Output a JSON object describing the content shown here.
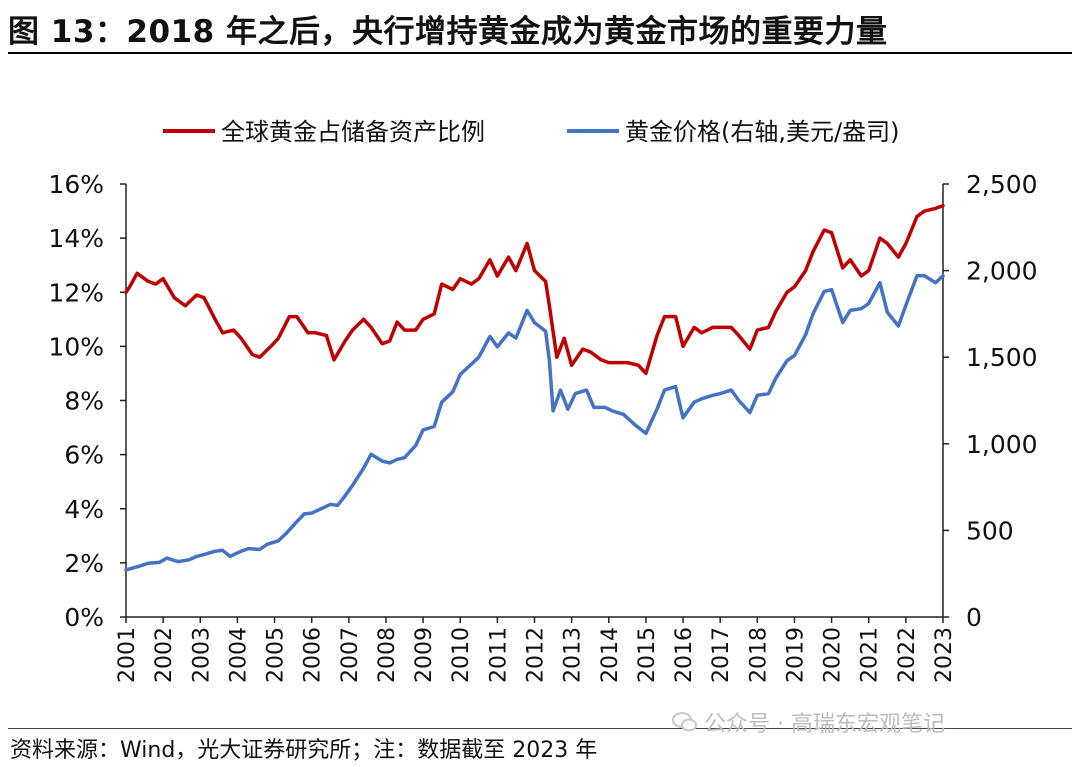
{
  "header": {
    "title": "图 13：2018 年之后，央行增持黄金成为黄金市场的重要力量"
  },
  "footer": {
    "source": "资料来源：Wind，光大证券研究所；注：数据截至 2023 年"
  },
  "watermark": {
    "text": "公众号 · 高瑞东宏观笔记"
  },
  "chart_data": {
    "type": "line",
    "legend_position": "top",
    "grid": false,
    "x_ticks": [
      "2001",
      "2002",
      "2003",
      "2004",
      "2005",
      "2006",
      "2007",
      "2008",
      "2009",
      "2010",
      "2011",
      "2012",
      "2013",
      "2014",
      "2015",
      "2016",
      "2017",
      "2018",
      "2019",
      "2020",
      "2021",
      "2022",
      "2023"
    ],
    "xlim": [
      2001,
      2023
    ],
    "y_left": {
      "lim": [
        0,
        16
      ],
      "ticks": [
        "0%",
        "2%",
        "4%",
        "6%",
        "8%",
        "10%",
        "12%",
        "14%",
        "16%"
      ]
    },
    "y_right": {
      "lim": [
        0,
        2500
      ],
      "ticks": [
        "0",
        "500",
        "1,000",
        "1,500",
        "2,000",
        "2,500"
      ]
    },
    "series": [
      {
        "name": "全球黄金占储备资产比例",
        "axis": "left",
        "color": "#C00000",
        "points": [
          [
            2001.0,
            12.0
          ],
          [
            2001.1,
            12.2
          ],
          [
            2001.3,
            12.7
          ],
          [
            2001.6,
            12.4
          ],
          [
            2001.8,
            12.3
          ],
          [
            2002.0,
            12.5
          ],
          [
            2002.3,
            11.8
          ],
          [
            2002.6,
            11.5
          ],
          [
            2002.9,
            11.9
          ],
          [
            2003.1,
            11.8
          ],
          [
            2003.4,
            11.0
          ],
          [
            2003.6,
            10.5
          ],
          [
            2003.9,
            10.6
          ],
          [
            2004.1,
            10.3
          ],
          [
            2004.4,
            9.7
          ],
          [
            2004.6,
            9.6
          ],
          [
            2004.9,
            10.0
          ],
          [
            2005.1,
            10.3
          ],
          [
            2005.4,
            11.1
          ],
          [
            2005.6,
            11.1
          ],
          [
            2005.9,
            10.5
          ],
          [
            2006.1,
            10.5
          ],
          [
            2006.4,
            10.4
          ],
          [
            2006.6,
            9.5
          ],
          [
            2006.9,
            10.2
          ],
          [
            2007.1,
            10.6
          ],
          [
            2007.4,
            11.0
          ],
          [
            2007.6,
            10.7
          ],
          [
            2007.9,
            10.1
          ],
          [
            2008.1,
            10.2
          ],
          [
            2008.3,
            10.9
          ],
          [
            2008.5,
            10.6
          ],
          [
            2008.8,
            10.6
          ],
          [
            2009.0,
            11.0
          ],
          [
            2009.3,
            11.2
          ],
          [
            2009.5,
            12.3
          ],
          [
            2009.8,
            12.1
          ],
          [
            2010.0,
            12.5
          ],
          [
            2010.3,
            12.3
          ],
          [
            2010.5,
            12.5
          ],
          [
            2010.8,
            13.2
          ],
          [
            2011.0,
            12.6
          ],
          [
            2011.3,
            13.3
          ],
          [
            2011.5,
            12.8
          ],
          [
            2011.8,
            13.8
          ],
          [
            2012.0,
            12.8
          ],
          [
            2012.3,
            12.4
          ],
          [
            2012.4,
            11.5
          ],
          [
            2012.6,
            9.6
          ],
          [
            2012.8,
            10.3
          ],
          [
            2013.0,
            9.3
          ],
          [
            2013.3,
            9.9
          ],
          [
            2013.5,
            9.8
          ],
          [
            2013.8,
            9.5
          ],
          [
            2014.0,
            9.4
          ],
          [
            2014.3,
            9.4
          ],
          [
            2014.5,
            9.4
          ],
          [
            2014.8,
            9.3
          ],
          [
            2015.0,
            9.0
          ],
          [
            2015.3,
            10.4
          ],
          [
            2015.5,
            11.1
          ],
          [
            2015.8,
            11.1
          ],
          [
            2016.0,
            10.0
          ],
          [
            2016.3,
            10.7
          ],
          [
            2016.5,
            10.5
          ],
          [
            2016.8,
            10.7
          ],
          [
            2017.0,
            10.7
          ],
          [
            2017.3,
            10.7
          ],
          [
            2017.5,
            10.4
          ],
          [
            2017.8,
            9.9
          ],
          [
            2018.0,
            10.6
          ],
          [
            2018.3,
            10.7
          ],
          [
            2018.5,
            11.3
          ],
          [
            2018.8,
            12.0
          ],
          [
            2019.0,
            12.2
          ],
          [
            2019.3,
            12.8
          ],
          [
            2019.5,
            13.5
          ],
          [
            2019.8,
            14.3
          ],
          [
            2020.0,
            14.2
          ],
          [
            2020.3,
            12.9
          ],
          [
            2020.5,
            13.2
          ],
          [
            2020.8,
            12.6
          ],
          [
            2021.0,
            12.8
          ],
          [
            2021.3,
            14.0
          ],
          [
            2021.5,
            13.8
          ],
          [
            2021.8,
            13.3
          ],
          [
            2022.0,
            13.8
          ],
          [
            2022.3,
            14.8
          ],
          [
            2022.5,
            15.0
          ],
          [
            2022.8,
            15.1
          ],
          [
            2023.0,
            15.2
          ]
        ]
      },
      {
        "name": "黄金价格(右轴,美元/盎司)",
        "axis": "right",
        "color": "#4472C4",
        "points": [
          [
            2001.0,
            272
          ],
          [
            2001.3,
            290
          ],
          [
            2001.6,
            310
          ],
          [
            2001.9,
            315
          ],
          [
            2002.1,
            340
          ],
          [
            2002.4,
            320
          ],
          [
            2002.7,
            330
          ],
          [
            2002.9,
            350
          ],
          [
            2003.1,
            360
          ],
          [
            2003.4,
            380
          ],
          [
            2003.6,
            385
          ],
          [
            2003.8,
            350
          ],
          [
            2004.1,
            380
          ],
          [
            2004.3,
            395
          ],
          [
            2004.6,
            390
          ],
          [
            2004.8,
            420
          ],
          [
            2005.1,
            440
          ],
          [
            2005.3,
            480
          ],
          [
            2005.6,
            550
          ],
          [
            2005.8,
            595
          ],
          [
            2006.0,
            600
          ],
          [
            2006.3,
            630
          ],
          [
            2006.5,
            650
          ],
          [
            2006.7,
            645
          ],
          [
            2006.9,
            700
          ],
          [
            2007.1,
            760
          ],
          [
            2007.4,
            860
          ],
          [
            2007.6,
            940
          ],
          [
            2007.9,
            900
          ],
          [
            2008.1,
            890
          ],
          [
            2008.3,
            910
          ],
          [
            2008.5,
            920
          ],
          [
            2008.8,
            990
          ],
          [
            2009.0,
            1080
          ],
          [
            2009.3,
            1100
          ],
          [
            2009.5,
            1240
          ],
          [
            2009.8,
            1300
          ],
          [
            2010.0,
            1400
          ],
          [
            2010.3,
            1460
          ],
          [
            2010.5,
            1500
          ],
          [
            2010.8,
            1620
          ],
          [
            2011.0,
            1560
          ],
          [
            2011.3,
            1640
          ],
          [
            2011.5,
            1610
          ],
          [
            2011.8,
            1770
          ],
          [
            2012.0,
            1700
          ],
          [
            2012.3,
            1650
          ],
          [
            2012.4,
            1480
          ],
          [
            2012.5,
            1190
          ],
          [
            2012.7,
            1310
          ],
          [
            2012.9,
            1200
          ],
          [
            2013.1,
            1290
          ],
          [
            2013.4,
            1310
          ],
          [
            2013.6,
            1210
          ],
          [
            2013.9,
            1210
          ],
          [
            2014.1,
            1190
          ],
          [
            2014.4,
            1170
          ],
          [
            2014.7,
            1110
          ],
          [
            2015.0,
            1060
          ],
          [
            2015.3,
            1200
          ],
          [
            2015.5,
            1310
          ],
          [
            2015.8,
            1330
          ],
          [
            2016.0,
            1150
          ],
          [
            2016.3,
            1240
          ],
          [
            2016.5,
            1260
          ],
          [
            2016.8,
            1280
          ],
          [
            2017.0,
            1290
          ],
          [
            2017.3,
            1310
          ],
          [
            2017.5,
            1250
          ],
          [
            2017.8,
            1180
          ],
          [
            2018.0,
            1280
          ],
          [
            2018.3,
            1290
          ],
          [
            2018.5,
            1380
          ],
          [
            2018.8,
            1480
          ],
          [
            2019.0,
            1510
          ],
          [
            2019.3,
            1630
          ],
          [
            2019.5,
            1750
          ],
          [
            2019.8,
            1880
          ],
          [
            2020.0,
            1890
          ],
          [
            2020.3,
            1700
          ],
          [
            2020.5,
            1770
          ],
          [
            2020.8,
            1780
          ],
          [
            2021.0,
            1810
          ],
          [
            2021.3,
            1930
          ],
          [
            2021.5,
            1760
          ],
          [
            2021.8,
            1680
          ],
          [
            2022.0,
            1800
          ],
          [
            2022.3,
            1970
          ],
          [
            2022.5,
            1970
          ],
          [
            2022.8,
            1930
          ],
          [
            2023.0,
            1970
          ]
        ]
      }
    ]
  }
}
